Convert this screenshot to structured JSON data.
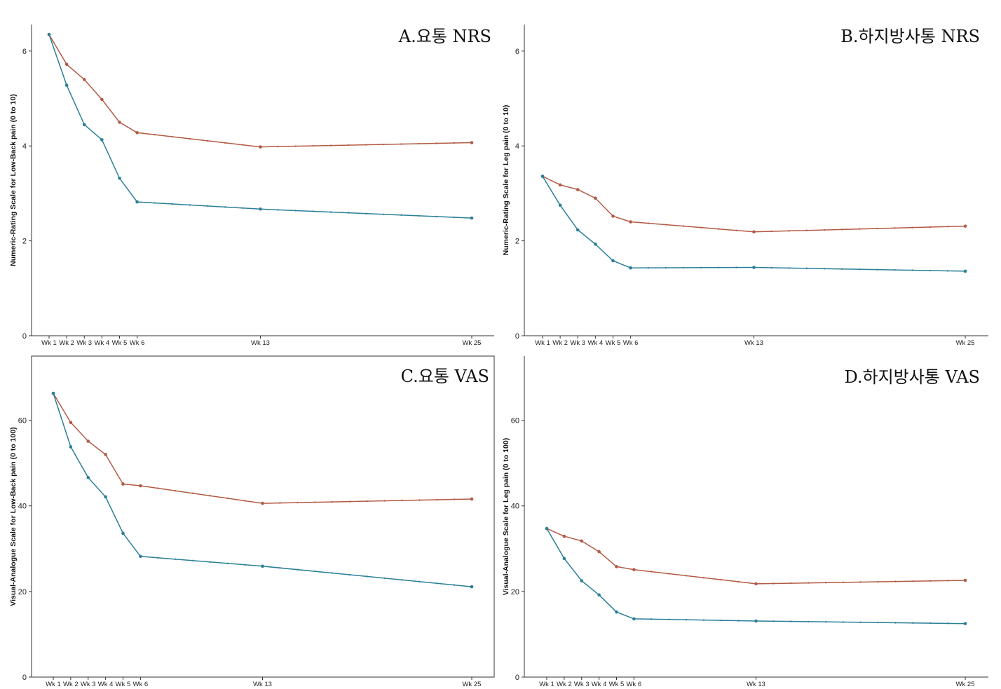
{
  "colors": {
    "series_a": "#b35a44",
    "series_b": "#2a7f97"
  },
  "chart_data": [
    {
      "type": "line",
      "title": "A.요통 NRS",
      "ylabel": "Numeric-Rating Scale for Low-Back pain (0 to 10)",
      "xlabel": "",
      "ylim": [
        0,
        6.5
      ],
      "yticks": [
        0,
        2,
        4,
        6
      ],
      "ytick_labels": [
        "0",
        "2",
        "4",
        "6"
      ],
      "x_range": [
        1,
        25
      ],
      "xticks": [
        1,
        2,
        3,
        4,
        5,
        6,
        13,
        25
      ],
      "xtick_labels": [
        "Wk 1",
        "Wk 2",
        "Wk 3",
        "Wk 4",
        "Wk 5",
        "Wk 6",
        "Wk 13",
        "Wk 25"
      ],
      "frame": "open",
      "series": [
        {
          "x": [
            1,
            2,
            3,
            4,
            5,
            6,
            13,
            25
          ],
          "values": [
            6.35,
            5.72,
            5.4,
            4.98,
            4.5,
            4.28,
            3.98,
            4.07
          ]
        },
        {
          "x": [
            1,
            2,
            3,
            4,
            5,
            6,
            13,
            25
          ],
          "values": [
            6.35,
            5.28,
            4.45,
            4.13,
            3.32,
            2.82,
            2.67,
            2.48
          ]
        }
      ]
    },
    {
      "type": "line",
      "title": "B.하지방사통 NRS",
      "ylabel": "Numeric-Rating Scale for Leg pain (0 to 10)",
      "xlabel": "",
      "ylim": [
        0,
        6.5
      ],
      "yticks": [
        0,
        2,
        4,
        6
      ],
      "ytick_labels": [
        "0",
        "2",
        "4",
        "6"
      ],
      "x_range": [
        1,
        25
      ],
      "xticks": [
        1,
        2,
        3,
        4,
        5,
        6,
        13,
        25
      ],
      "xtick_labels": [
        "Wk 1",
        "Wk 2",
        "Wk 3",
        "Wk 4",
        "Wk 5",
        "Wk 6",
        "Wk 13",
        "Wk 25"
      ],
      "frame": "open",
      "series": [
        {
          "x": [
            1,
            2,
            3,
            4,
            5,
            6,
            13,
            25
          ],
          "values": [
            3.36,
            3.18,
            3.08,
            2.9,
            2.52,
            2.4,
            2.19,
            2.31
          ]
        },
        {
          "x": [
            1,
            2,
            3,
            4,
            5,
            6,
            13,
            25
          ],
          "values": [
            3.36,
            2.75,
            2.23,
            1.93,
            1.58,
            1.43,
            1.44,
            1.36
          ]
        }
      ]
    },
    {
      "type": "line",
      "title": "C.요통 VAS",
      "ylabel": "Visual-Analogue Scale for Low-Back pain (0 to 100)",
      "xlabel": "",
      "ylim": [
        0,
        75
      ],
      "yticks": [
        0,
        20,
        40,
        60
      ],
      "ytick_labels": [
        "0",
        "20",
        "40",
        "60"
      ],
      "x_range": [
        1,
        25
      ],
      "xticks": [
        1,
        2,
        3,
        4,
        5,
        6,
        13,
        25
      ],
      "xtick_labels": [
        "Wk 1",
        "Wk 2",
        "Wk 3",
        "Wk 4",
        "Wk 5",
        "Wk 6",
        "Wk 13",
        "Wk 25"
      ],
      "frame": "box",
      "series": [
        {
          "x": [
            1,
            2,
            3,
            4,
            5,
            6,
            13,
            25
          ],
          "values": [
            66.3,
            59.5,
            55.1,
            52.0,
            45.1,
            44.7,
            40.6,
            41.6
          ]
        },
        {
          "x": [
            1,
            2,
            3,
            4,
            5,
            6,
            13,
            25
          ],
          "values": [
            66.3,
            53.8,
            46.6,
            42.1,
            33.6,
            28.2,
            25.9,
            21.1
          ]
        }
      ]
    },
    {
      "type": "line",
      "title": "D.하지방사통 VAS",
      "ylabel": "Visual-Analogue Scale for Leg pain (0 to 100)",
      "xlabel": "",
      "ylim": [
        0,
        75
      ],
      "yticks": [
        0,
        20,
        40,
        60
      ],
      "ytick_labels": [
        "0",
        "20",
        "40",
        "60"
      ],
      "x_range": [
        1,
        25
      ],
      "xticks": [
        1,
        2,
        3,
        4,
        5,
        6,
        13,
        25
      ],
      "xtick_labels": [
        "Wk 1",
        "Wk 2",
        "Wk 3",
        "Wk 4",
        "Wk 5",
        "Wk 6",
        "Wk 13",
        "Wk 25"
      ],
      "frame": "open",
      "series": [
        {
          "x": [
            1,
            2,
            3,
            4,
            5,
            6,
            13,
            25
          ],
          "values": [
            34.7,
            32.9,
            31.8,
            29.3,
            25.8,
            25.1,
            21.8,
            22.6
          ]
        },
        {
          "x": [
            1,
            2,
            3,
            4,
            5,
            6,
            13,
            25
          ],
          "values": [
            34.7,
            27.7,
            22.5,
            19.2,
            15.2,
            13.6,
            13.1,
            12.5
          ]
        }
      ]
    }
  ]
}
